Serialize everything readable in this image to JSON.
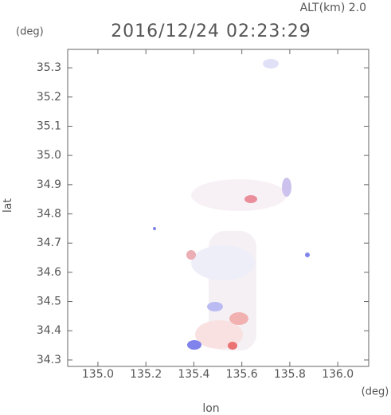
{
  "chart_data": {
    "type": "map",
    "title": "2016/12/24 02:23:29",
    "annotation": "ALT(km) 2.0",
    "xlabel": "lon",
    "ylabel": "lat",
    "xunit": "(deg)",
    "yunit": "(deg)",
    "xlim": [
      134.874,
      136.129
    ],
    "ylim": [
      34.278,
      35.363
    ],
    "xticks": [
      {
        "value": 135.0,
        "label": "135.0"
      },
      {
        "value": 135.2,
        "label": "135.2"
      },
      {
        "value": 135.4,
        "label": "135.4"
      },
      {
        "value": 135.6,
        "label": "135.6"
      },
      {
        "value": 135.8,
        "label": "135.8"
      },
      {
        "value": 136.0,
        "label": "136.0"
      }
    ],
    "yticks": [
      {
        "value": 34.3,
        "label": "34.3"
      },
      34.4,
      34.5,
      34.6,
      34.7,
      34.8,
      34.9,
      {
        "value": 35.0,
        "label": "35.0"
      },
      35.1,
      35.2,
      35.3
    ]
  }
}
